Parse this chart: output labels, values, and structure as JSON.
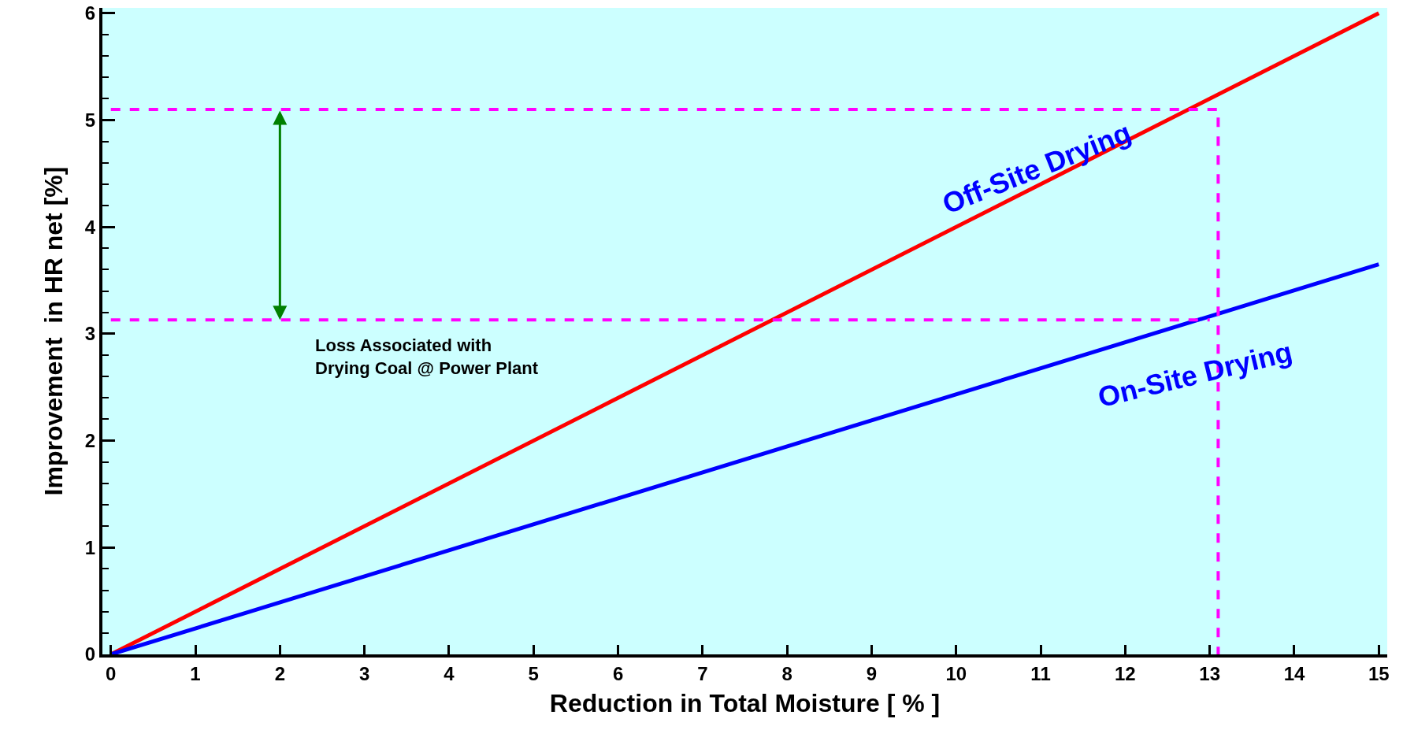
{
  "chart_data": {
    "type": "line",
    "xlabel": "Reduction in Total Moisture [ % ]",
    "ylabel": "Improvement  in HR net [%]",
    "annotations": [
      "Loss Associated with\nDrying Coal @ Power Plant"
    ],
    "series": [
      {
        "name": "Off-Site Drying",
        "color": "#ff0000",
        "x": [
          0,
          15
        ],
        "values": [
          0,
          6
        ]
      },
      {
        "name": "On-Site Drying",
        "color": "#0000ff",
        "x": [
          0,
          15
        ],
        "values": [
          0,
          3.65
        ]
      },
      {
        "color": "#ff00ff",
        "line_style": "dashed",
        "x": [
          0,
          13.1,
          13.1
        ],
        "values": [
          5.1,
          5.1,
          0
        ]
      },
      {
        "color": "#ff00ff",
        "line_style": "dashed",
        "x": [
          0,
          13
        ],
        "values": [
          3.13,
          3.13
        ]
      }
    ],
    "xlim": [
      -0.1,
      15.1
    ],
    "xticks": [
      0,
      1,
      2,
      3,
      4,
      5,
      6,
      7,
      8,
      9,
      10,
      11,
      12,
      13,
      14,
      15
    ],
    "ylim": [
      0,
      6.05
    ],
    "yticks": [
      0,
      1,
      2,
      3,
      4,
      5,
      6
    ],
    "grid": false,
    "legend": false
  }
}
